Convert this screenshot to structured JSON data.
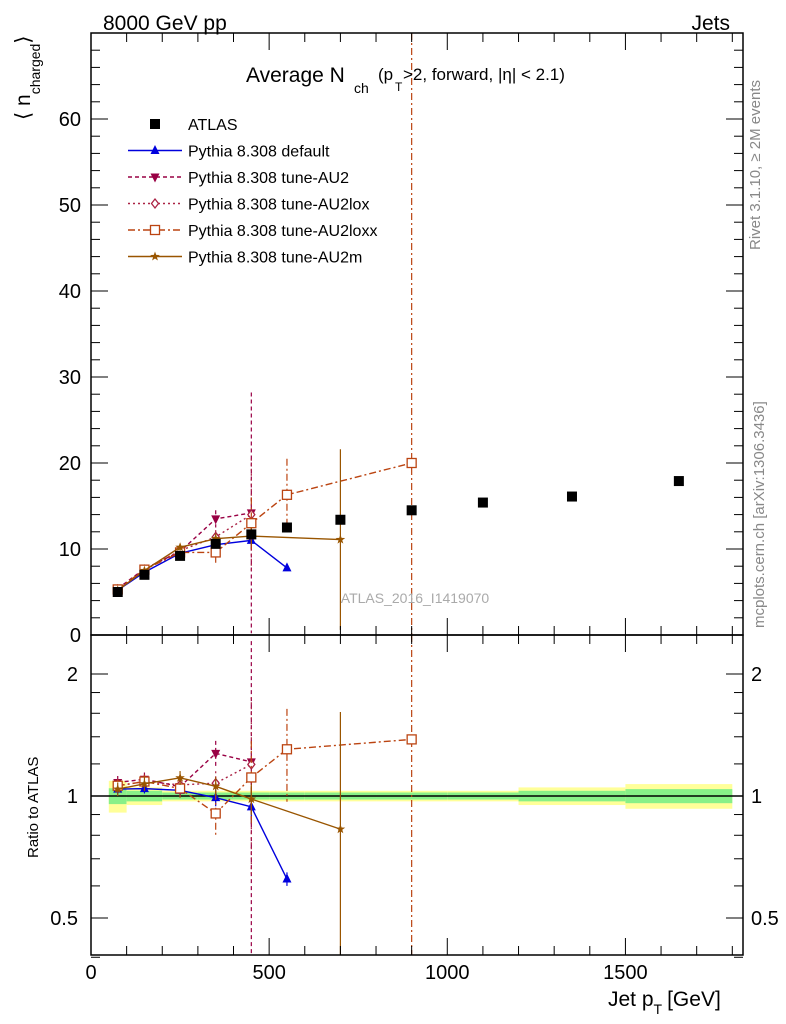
{
  "header": {
    "left": "8000 GeV pp",
    "right": "Jets"
  },
  "side_labels": {
    "rivet": "Rivet 3.1.10, ≥ 2M events",
    "mcplots": "mcplots.cern.ch [arXiv:1306.3436]"
  },
  "chart_data": {
    "type": "scatter",
    "title_main": "Average N",
    "title_sub": "ch",
    "title_rest": "(p",
    "title_rest_sub": "T",
    "title_tail": ">2, forward, |η| < 2.1)",
    "ylabel": "⟨ n",
    "ylabel_sub": "charged",
    "ylabel_close": "⟩",
    "ratio_ylabel": "Ratio to ATLAS",
    "xlabel": "Jet p",
    "xlabel_sub": "T",
    "xlabel_unit": "[GeV]",
    "watermark": "ATLAS_2016_I1419070",
    "xlim": [
      0,
      1830
    ],
    "ylim": [
      0,
      70
    ],
    "ratio_ylim": [
      0.34,
      2.32
    ],
    "x_ticks": [
      0,
      500,
      1000,
      1500
    ],
    "x_tick_labels": [
      "0",
      "500",
      "1000",
      "1500"
    ],
    "y_ticks": [
      0,
      10,
      20,
      30,
      40,
      50,
      60
    ],
    "y_tick_labels": [
      "0",
      "10",
      "20",
      "30",
      "40",
      "50",
      "60"
    ],
    "ratio_ticks": [
      0.5,
      1,
      2
    ],
    "ratio_tick_labels": [
      "0.5",
      "1",
      "2"
    ],
    "grid": false,
    "legend_position": "top-left",
    "data": {
      "name": "ATLAS",
      "x": [
        75,
        150,
        250,
        350,
        450,
        550,
        700,
        900,
        1100,
        1350,
        1650
      ],
      "y": [
        5.0,
        7.0,
        9.2,
        10.6,
        11.7,
        12.5,
        13.4,
        14.5,
        15.4,
        16.1,
        17.9
      ],
      "bins": [
        [
          50,
          100
        ],
        [
          100,
          200
        ],
        [
          200,
          300
        ],
        [
          300,
          400
        ],
        [
          400,
          500
        ],
        [
          500,
          600
        ],
        [
          600,
          800
        ],
        [
          800,
          1000
        ],
        [
          1000,
          1200
        ],
        [
          1200,
          1500
        ],
        [
          1500,
          1800
        ]
      ],
      "band_inner": [
        0.045,
        0.03,
        0.02,
        0.02,
        0.02,
        0.02,
        0.02,
        0.02,
        0.02,
        0.03,
        0.04
      ],
      "band_outer": [
        0.09,
        0.05,
        0.03,
        0.03,
        0.03,
        0.03,
        0.03,
        0.03,
        0.03,
        0.05,
        0.07
      ]
    },
    "series": [
      {
        "name": "Pythia 8.308 default",
        "color": "#0000dd",
        "dash": "",
        "marker": "triangle-up",
        "x": [
          75,
          150,
          250,
          350,
          450,
          550
        ],
        "y": [
          5.2,
          7.3,
          9.5,
          10.5,
          11.0,
          7.8
        ],
        "err": [
          0.15,
          0.2,
          0.3,
          0.5,
          1.0,
          0.3
        ]
      },
      {
        "name": "Pythia 8.308 tune-AU2",
        "color": "#990044",
        "dash": "4,3",
        "marker": "triangle-down",
        "x": [
          75,
          150,
          250,
          350,
          450
        ],
        "y": [
          5.4,
          7.7,
          9.7,
          13.5,
          14.2
        ],
        "err": [
          0.2,
          0.3,
          0.5,
          1.0,
          14.0
        ]
      },
      {
        "name": "Pythia 8.308 tune-AU2lox",
        "color": "#aa2244",
        "dash": "2,3",
        "marker": "diamond-open",
        "x": [
          75,
          150,
          250,
          350,
          450
        ],
        "y": [
          5.3,
          7.6,
          9.8,
          11.4,
          14.0
        ],
        "err": [
          0.2,
          0.3,
          0.5,
          0.8,
          6.5
        ]
      },
      {
        "name": "Pythia 8.308 tune-AU2loxx",
        "color": "#bb4411",
        "dash": "7,3,2,3",
        "marker": "square-open",
        "x": [
          75,
          150,
          250,
          350,
          450,
          550,
          900
        ],
        "y": [
          5.3,
          7.6,
          9.6,
          9.6,
          13.0,
          16.3,
          20.0
        ],
        "err": [
          0.2,
          0.3,
          0.5,
          1.2,
          3.0,
          4.2,
          300
        ]
      },
      {
        "name": "Pythia 8.308 tune-AU2m",
        "color": "#995500",
        "dash": "",
        "marker": "star",
        "x": [
          75,
          150,
          250,
          350,
          450,
          700
        ],
        "y": [
          5.2,
          7.5,
          10.2,
          11.2,
          11.5,
          11.1
        ],
        "err": [
          0.2,
          0.3,
          0.4,
          0.6,
          1.0,
          10.5
        ]
      }
    ]
  }
}
